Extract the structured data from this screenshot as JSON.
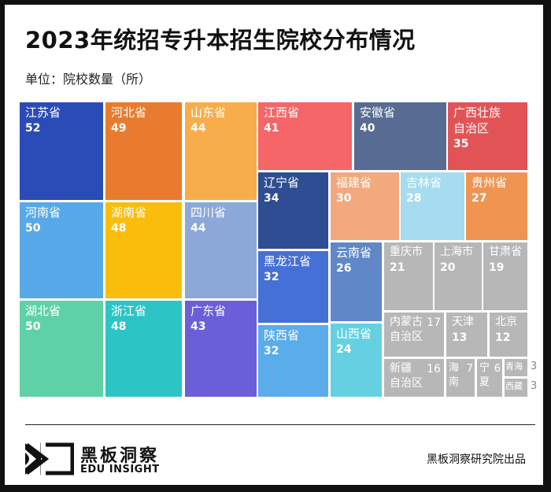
{
  "title": "2023年统招专升本招生院校分布情况",
  "unit": "单位：院校数量（所）",
  "footer": {
    "logo_cn": "黑板洞察",
    "logo_en": "EDU INSIGHT",
    "source": "黑板洞察研究院出品"
  },
  "chart_data": {
    "type": "treemap",
    "title": "2023年统招专升本招生院校分布情况",
    "unit": "院校数量（所）",
    "items": [
      {
        "name": "江苏省",
        "value": 52,
        "color": "#2b4bb6"
      },
      {
        "name": "河北省",
        "value": 49,
        "color": "#e97b2f"
      },
      {
        "name": "山东省",
        "value": 44,
        "color": "#f8ad4b"
      },
      {
        "name": "河南省",
        "value": 50,
        "color": "#58a9ea"
      },
      {
        "name": "湖南省",
        "value": 48,
        "color": "#fbbd0c"
      },
      {
        "name": "四川省",
        "value": 44,
        "color": "#8ca8d8"
      },
      {
        "name": "湖北省",
        "value": 50,
        "color": "#5ed2a6"
      },
      {
        "name": "浙江省",
        "value": 48,
        "color": "#2dc4c6"
      },
      {
        "name": "广东省",
        "value": 43,
        "color": "#6a5fd9"
      },
      {
        "name": "江西省",
        "value": 41,
        "color": "#f46667"
      },
      {
        "name": "安徽省",
        "value": 40,
        "color": "#576b93"
      },
      {
        "name": "广西壮族\n自治区",
        "value": 35,
        "color": "#e25356"
      },
      {
        "name": "辽宁省",
        "value": 34,
        "color": "#2e4d92"
      },
      {
        "name": "福建省",
        "value": 30,
        "color": "#f1a97d"
      },
      {
        "name": "吉林省",
        "value": 28,
        "color": "#a6dcf0"
      },
      {
        "name": "贵州省",
        "value": 27,
        "color": "#f09452"
      },
      {
        "name": "黑龙江省",
        "value": 32,
        "color": "#4570d6"
      },
      {
        "name": "陕西省",
        "value": 32,
        "color": "#5aaceb"
      },
      {
        "name": "云南省",
        "value": 26,
        "color": "#6088c8"
      },
      {
        "name": "山西省",
        "value": 24,
        "color": "#65d0e2"
      },
      {
        "name": "重庆市",
        "value": 21,
        "color": "#b7b7b7"
      },
      {
        "name": "上海市",
        "value": 20,
        "color": "#b7b7b7"
      },
      {
        "name": "甘肃省",
        "value": 19,
        "color": "#b7b7b7"
      },
      {
        "name": "内蒙古\n自治区",
        "value": 17,
        "color": "#b7b7b7"
      },
      {
        "name": "天津",
        "value": 13,
        "color": "#b7b7b7"
      },
      {
        "name": "北京",
        "value": 12,
        "color": "#b7b7b7"
      },
      {
        "name": "新疆\n自治区",
        "value": 16,
        "color": "#b7b7b7"
      },
      {
        "name": "海\n南",
        "value": 7,
        "color": "#b7b7b7"
      },
      {
        "name": "宁\n夏",
        "value": 6,
        "color": "#b7b7b7"
      },
      {
        "name": "青海",
        "value": 3,
        "color": "#b7b7b7"
      },
      {
        "name": "西藏",
        "value": 3,
        "color": "#b7b7b7"
      }
    ]
  }
}
